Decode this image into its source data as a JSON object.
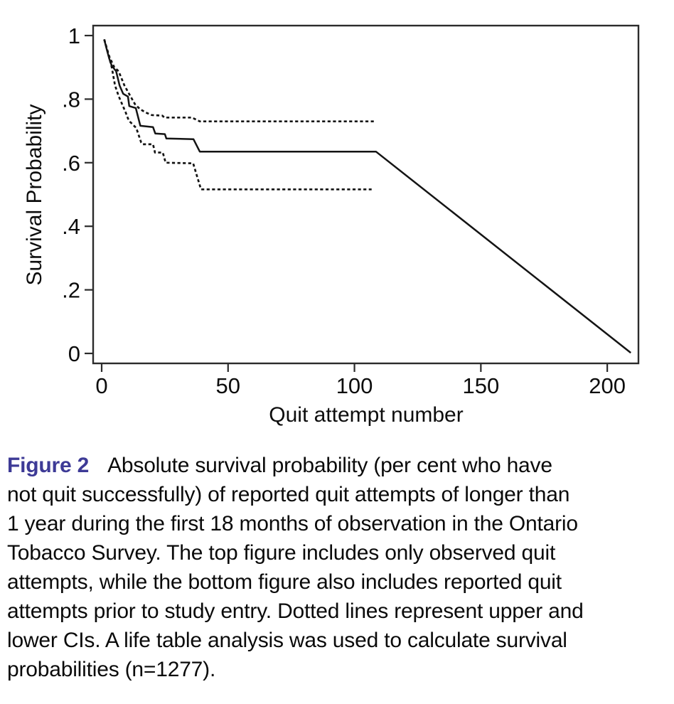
{
  "chart_data": {
    "type": "line",
    "title": "",
    "xlabel": "Quit attempt number",
    "ylabel": "Survival Probability",
    "xlim": [
      -3.4,
      212.4
    ],
    "ylim": [
      -0.031,
      1.031
    ],
    "grid": false,
    "legend": "none",
    "x_ticks": [
      {
        "label": "0",
        "value": 0
      },
      {
        "label": "50",
        "value": 50
      },
      {
        "label": "100",
        "value": 100
      },
      {
        "label": "150",
        "value": 150
      },
      {
        "label": "200",
        "value": 200
      }
    ],
    "y_ticks": [
      {
        "label": "1",
        "value": 1.0
      },
      {
        "label": ".8",
        "value": 0.8
      },
      {
        "label": ".6",
        "value": 0.6
      },
      {
        "label": ".4",
        "value": 0.4
      },
      {
        "label": ".2",
        "value": 0.2
      },
      {
        "label": "0",
        "value": 0.0
      }
    ],
    "series": [
      {
        "name": "survival-estimate",
        "style": "solid",
        "points": [
          [
            1,
            0.988
          ],
          [
            2,
            0.957
          ],
          [
            3,
            0.927
          ],
          [
            4,
            0.905
          ],
          [
            5.7,
            0.888
          ],
          [
            7.1,
            0.843
          ],
          [
            8.5,
            0.817
          ],
          [
            10.4,
            0.808
          ],
          [
            10.9,
            0.778
          ],
          [
            13.5,
            0.772
          ],
          [
            15.3,
            0.716
          ],
          [
            20.3,
            0.712
          ],
          [
            21.2,
            0.692
          ],
          [
            25,
            0.69
          ],
          [
            25.6,
            0.676
          ],
          [
            36.3,
            0.674
          ],
          [
            38.8,
            0.635
          ],
          [
            108.5,
            0.635
          ],
          [
            209.3,
            0.002
          ]
        ]
      },
      {
        "name": "upper-ci",
        "style": "dashed",
        "points": [
          [
            1,
            0.988
          ],
          [
            3,
            0.934
          ],
          [
            5,
            0.9
          ],
          [
            6.7,
            0.888
          ],
          [
            9,
            0.843
          ],
          [
            11.3,
            0.81
          ],
          [
            13.2,
            0.784
          ],
          [
            15.1,
            0.769
          ],
          [
            17.4,
            0.758
          ],
          [
            19.8,
            0.75
          ],
          [
            24,
            0.748
          ],
          [
            24.8,
            0.742
          ],
          [
            35.7,
            0.742
          ],
          [
            38.8,
            0.73
          ],
          [
            107.8,
            0.73
          ]
        ]
      },
      {
        "name": "lower-ci",
        "style": "dashed",
        "points": [
          [
            1,
            0.988
          ],
          [
            2.5,
            0.945
          ],
          [
            4,
            0.9
          ],
          [
            5.3,
            0.843
          ],
          [
            6.7,
            0.81
          ],
          [
            8.1,
            0.784
          ],
          [
            9.5,
            0.758
          ],
          [
            10.4,
            0.739
          ],
          [
            11.3,
            0.728
          ],
          [
            13.7,
            0.709
          ],
          [
            15.6,
            0.664
          ],
          [
            16.2,
            0.658
          ],
          [
            20.3,
            0.658
          ],
          [
            21.1,
            0.632
          ],
          [
            24.2,
            0.632
          ],
          [
            25.3,
            0.6
          ],
          [
            36.2,
            0.598
          ],
          [
            39.3,
            0.516
          ],
          [
            106.8,
            0.516
          ]
        ]
      }
    ]
  },
  "caption": {
    "label": "Figure 2",
    "lines": [
      "Absolute survival probability (per cent who have",
      "not quit successfully) of reported quit attempts of longer than",
      "1 year during the first 18 months of observation in the Ontario",
      "Tobacco Survey. The top figure includes only observed quit",
      "attempts, while the bottom figure also includes reported quit",
      "attempts prior to study entry. Dotted lines represent upper and",
      "lower CIs. A life table analysis was used to calculate survival",
      "probabilities (n=1277)."
    ]
  },
  "colors": {
    "line": "#141414",
    "axis": "#2b2b2b",
    "text": "#0d0d0d",
    "figure_label": "#3d3a96"
  }
}
